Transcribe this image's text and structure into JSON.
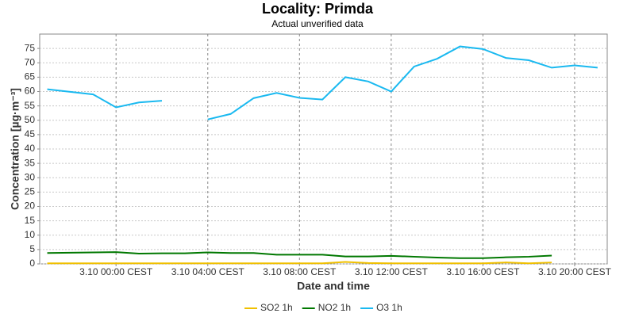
{
  "chart_data": {
    "type": "line",
    "title": "Locality: Primda",
    "subtitle": "Actual unverified data",
    "xlabel": "Date and time",
    "ylabel": "Concentration [µg·m⁻³]",
    "xlim": [
      -3.33,
      21.42
    ],
    "xticks": [
      {
        "value": 0,
        "label": "3.10 00:00 CEST"
      },
      {
        "value": 4,
        "label": "3.10 04:00 CEST"
      },
      {
        "value": 8,
        "label": "3.10 08:00 CEST"
      },
      {
        "value": 12,
        "label": "3.10 12:00 CEST"
      },
      {
        "value": 16,
        "label": "3.10 16:00 CEST"
      },
      {
        "value": 20,
        "label": "3.10 20:00 CEST"
      }
    ],
    "ylim": [
      0,
      80
    ],
    "yticks": [
      0,
      5,
      10,
      15,
      20,
      25,
      30,
      35,
      40,
      45,
      50,
      55,
      60,
      65,
      70,
      75
    ],
    "grid": true,
    "legend": "bottom",
    "series": [
      {
        "name": "SO2 1h",
        "color": "#f0c000",
        "x": [
          -3,
          -2,
          -1,
          0,
          1,
          2,
          3,
          4,
          5,
          6,
          7,
          8,
          9,
          10,
          11,
          12,
          13,
          14,
          15,
          16,
          17,
          18,
          19
        ],
        "values": [
          0.2,
          0.2,
          0.2,
          0.2,
          0.2,
          0.2,
          0.2,
          0.2,
          0.2,
          0.2,
          0.2,
          0.2,
          0.2,
          0.7,
          0.3,
          0.2,
          0.2,
          0.2,
          0.2,
          0.2,
          0.5,
          0.2,
          0.5
        ]
      },
      {
        "name": "NO2 1h",
        "color": "#007800",
        "x": [
          -3,
          -2,
          -1,
          0,
          1,
          2,
          3,
          4,
          5,
          6,
          7,
          8,
          9,
          10,
          11,
          12,
          13,
          14,
          15,
          16,
          17,
          18,
          19
        ],
        "values": [
          3.8,
          3.9,
          4.0,
          4.1,
          3.6,
          3.7,
          3.7,
          4.0,
          3.8,
          3.8,
          3.2,
          3.2,
          3.2,
          2.6,
          2.6,
          2.8,
          2.5,
          2.2,
          2.0,
          2.0,
          2.3,
          2.5,
          2.9
        ]
      },
      {
        "name": "O3 1h",
        "color": "#1ab9f0",
        "x": [
          -3,
          -1,
          0,
          1,
          2,
          3,
          4,
          5,
          6,
          7,
          8,
          9,
          10,
          11,
          12,
          13,
          14,
          15,
          16,
          17,
          18,
          19,
          20,
          21
        ],
        "values": [
          60.8,
          59.0,
          54.5,
          56.2,
          56.8,
          null,
          50.3,
          52.2,
          57.7,
          59.5,
          57.8,
          57.2,
          65.0,
          63.5,
          60.0,
          68.7,
          71.4,
          75.7,
          74.8,
          71.7,
          70.9,
          68.3,
          69.1,
          68.3
        ]
      }
    ]
  }
}
